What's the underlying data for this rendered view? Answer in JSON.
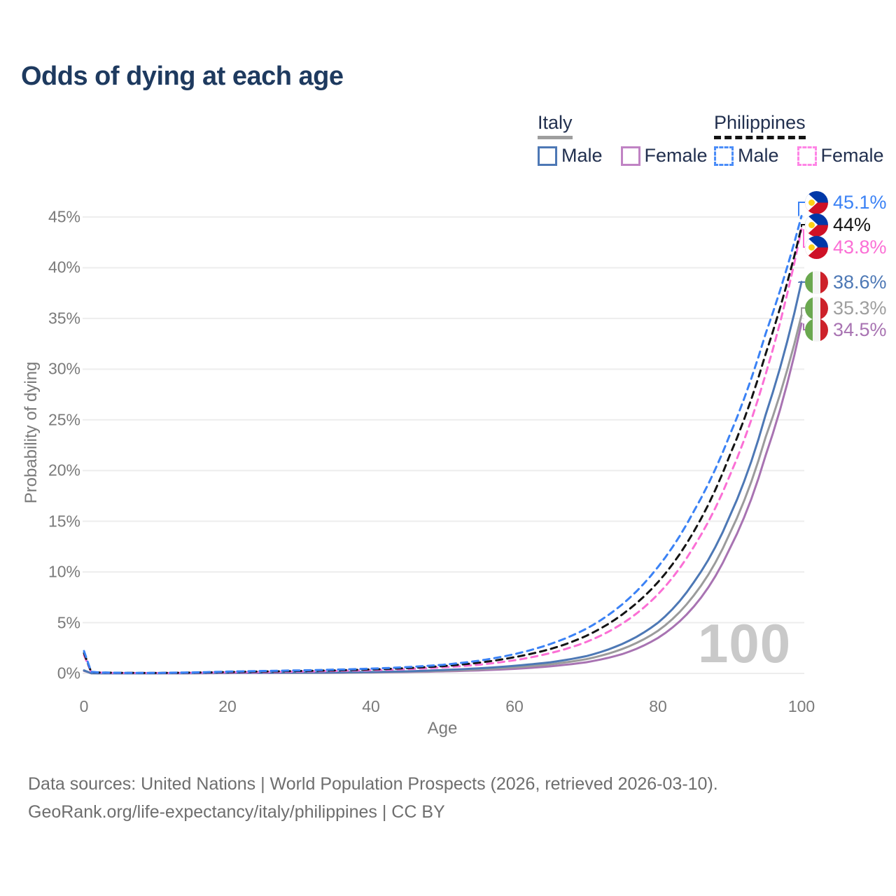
{
  "title": "Odds of dying at each age",
  "legend": {
    "groups": [
      {
        "country": "Italy",
        "line_style": "solid",
        "underline_color": "#9e9e9e",
        "items": [
          {
            "label": "Male",
            "color": "#4d78b5"
          },
          {
            "label": "Female",
            "color": "#c083c4"
          }
        ]
      },
      {
        "country": "Philippines",
        "line_style": "dashed",
        "underline_color": "#141414",
        "items": [
          {
            "label": "Male",
            "color": "#4b8df8"
          },
          {
            "label": "Female",
            "color": "#ff85e6"
          }
        ]
      }
    ]
  },
  "axes": {
    "x_title": "Age",
    "y_title": "Probability of dying",
    "x_ticks": [
      0,
      20,
      40,
      60,
      80,
      100
    ],
    "y_ticks": [
      "0%",
      "5%",
      "10%",
      "15%",
      "20%",
      "25%",
      "30%",
      "35%",
      "40%",
      "45%"
    ]
  },
  "watermark": "100",
  "end_labels": [
    {
      "value": "45.1%",
      "color": "#3b82f5",
      "flag": "ph",
      "series": "Philippines Male"
    },
    {
      "value": "44%",
      "color": "#141414",
      "flag": "ph",
      "series": "Philippines Both sexes"
    },
    {
      "value": "43.8%",
      "color": "#fb6fd5",
      "flag": "ph",
      "series": "Philippines Female"
    },
    {
      "value": "38.6%",
      "color": "#4d78b5",
      "flag": "it",
      "series": "Italy Male"
    },
    {
      "value": "35.3%",
      "color": "#9e9e9e",
      "flag": "it",
      "series": "Italy Both sexes"
    },
    {
      "value": "34.5%",
      "color": "#a873b2",
      "flag": "it",
      "series": "Italy Female"
    }
  ],
  "flag_colors": {
    "ph": {
      "blue": "#0038a8",
      "red": "#ce1126",
      "sun": "#fcd116",
      "white": "#ffffff"
    },
    "it": {
      "green": "#6aa84f",
      "white": "#f4f4f4",
      "red": "#cd212a"
    }
  },
  "source": {
    "line1": "Data sources: United Nations | World Population Prospects (2026, retrieved 2026-03-10).",
    "line2": "GeoRank.org/life-expectancy/italy/philippines | CC BY"
  },
  "chart_data": {
    "type": "line",
    "title": "Odds of dying at each age",
    "xlabel": "Age",
    "ylabel": "Probability of dying",
    "xlim": [
      0,
      100
    ],
    "ylim_pct": [
      0,
      47
    ],
    "grid": "horizontal",
    "legend_position": "top-right",
    "x": [
      0,
      1,
      2,
      5,
      10,
      15,
      20,
      25,
      30,
      35,
      40,
      45,
      50,
      55,
      60,
      65,
      70,
      75,
      80,
      85,
      90,
      95,
      100
    ],
    "series": [
      {
        "id": "ph-male",
        "name": "Philippines Male",
        "color": "#3b82f5",
        "dashed": true,
        "end_label": "45.1%",
        "values": [
          2.2,
          0.16,
          0.1,
          0.06,
          0.05,
          0.1,
          0.18,
          0.24,
          0.3,
          0.37,
          0.47,
          0.62,
          0.85,
          1.25,
          1.9,
          2.9,
          4.4,
          6.8,
          10.5,
          16.0,
          23.5,
          33.5,
          45.1
        ]
      },
      {
        "id": "ph-both",
        "name": "Philippines Both sexes",
        "color": "#141414",
        "dashed": true,
        "end_label": "44%",
        "values": [
          2.0,
          0.14,
          0.09,
          0.05,
          0.04,
          0.08,
          0.14,
          0.19,
          0.24,
          0.3,
          0.39,
          0.52,
          0.72,
          1.05,
          1.6,
          2.4,
          3.7,
          5.8,
          9.0,
          14.0,
          21.5,
          31.5,
          44.0
        ]
      },
      {
        "id": "ph-female",
        "name": "Philippines Female",
        "color": "#fb6fd5",
        "dashed": true,
        "end_label": "43.8%",
        "values": [
          1.8,
          0.13,
          0.08,
          0.04,
          0.04,
          0.06,
          0.1,
          0.13,
          0.18,
          0.24,
          0.31,
          0.42,
          0.6,
          0.85,
          1.3,
          2.0,
          3.1,
          4.9,
          7.8,
          12.5,
          19.5,
          29.5,
          43.8
        ]
      },
      {
        "id": "it-male",
        "name": "Italy Male",
        "color": "#4d78b5",
        "dashed": false,
        "end_label": "38.6%",
        "values": [
          0.3,
          0.02,
          0.01,
          0.01,
          0.01,
          0.03,
          0.06,
          0.07,
          0.08,
          0.1,
          0.14,
          0.21,
          0.33,
          0.5,
          0.75,
          1.1,
          1.7,
          2.9,
          5.0,
          9.0,
          15.5,
          25.5,
          38.6
        ]
      },
      {
        "id": "it-both",
        "name": "Italy Both sexes",
        "color": "#9b9b9b",
        "dashed": false,
        "end_label": "35.3%",
        "values": [
          0.28,
          0.02,
          0.01,
          0.01,
          0.01,
          0.02,
          0.04,
          0.05,
          0.06,
          0.08,
          0.11,
          0.17,
          0.26,
          0.4,
          0.6,
          0.9,
          1.4,
          2.4,
          4.2,
          7.7,
          13.8,
          23.3,
          35.3
        ]
      },
      {
        "id": "it-female",
        "name": "Italy Female",
        "color": "#a873b2",
        "dashed": false,
        "end_label": "34.5%",
        "values": [
          0.25,
          0.02,
          0.01,
          0.01,
          0.01,
          0.02,
          0.03,
          0.04,
          0.05,
          0.06,
          0.09,
          0.13,
          0.2,
          0.3,
          0.45,
          0.7,
          1.1,
          1.9,
          3.5,
          6.6,
          12.3,
          21.5,
          34.5
        ]
      }
    ]
  }
}
